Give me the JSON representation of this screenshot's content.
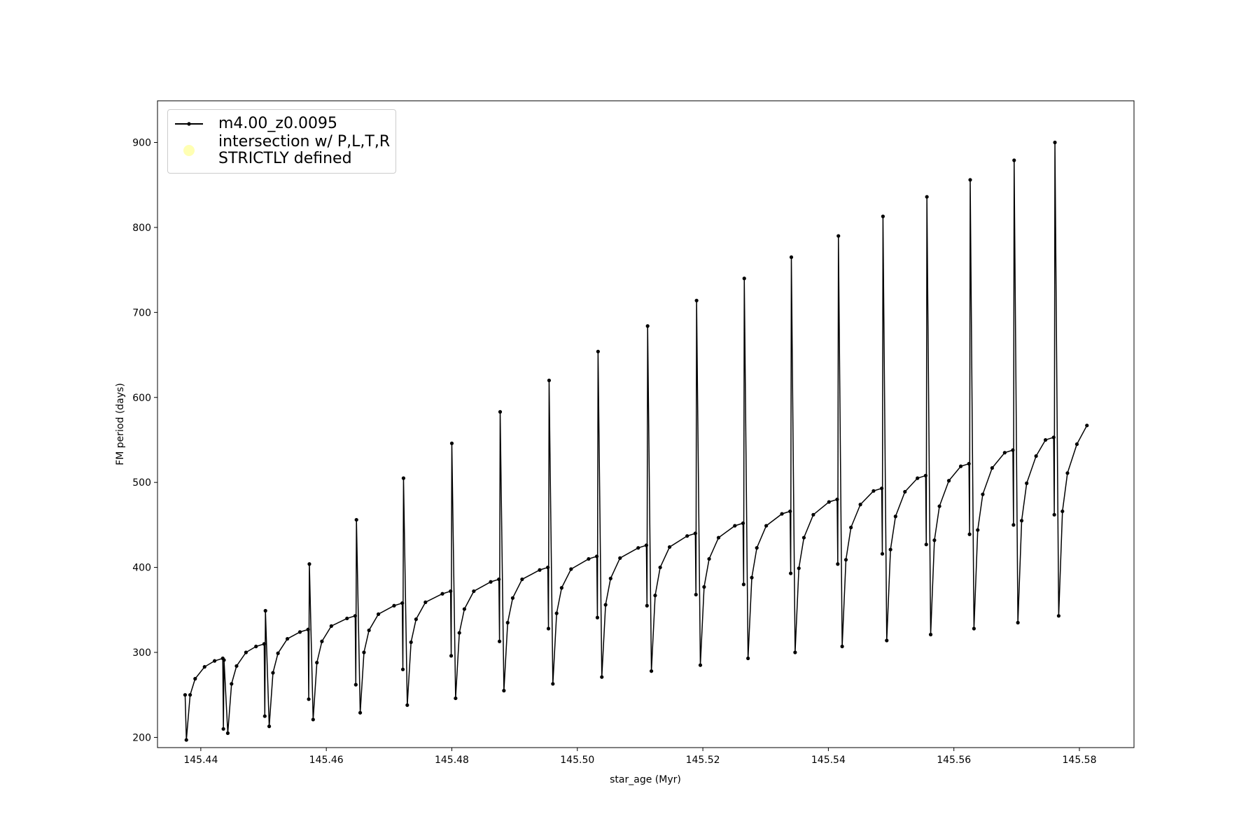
{
  "chart_data": {
    "type": "line",
    "xlabel": "star_age (Myr)",
    "ylabel": "FM period (days)",
    "xlim": [
      145.4331,
      145.5887
    ],
    "ylim": [
      188,
      949
    ],
    "xticks": [
      145.44,
      145.46,
      145.48,
      {
        "value": 145.5,
        "label": "145.50"
      },
      145.52,
      145.54,
      145.56,
      145.58
    ],
    "yticks": [
      200,
      300,
      400,
      500,
      600,
      700,
      800,
      900
    ],
    "legend": "upper left",
    "series": [
      {
        "name": "m4.00_z0.0095",
        "color": "#000000",
        "marker": "dot",
        "x": [
          145.4375,
          145.4377,
          145.4383,
          145.4391,
          145.4406,
          145.4422,
          145.4435,
          145.4436,
          145.4437,
          145.4443,
          145.4449,
          145.4457,
          145.4472,
          145.4488,
          145.4501,
          145.4502,
          145.4503,
          145.4509,
          145.4515,
          145.4523,
          145.4538,
          145.4558,
          145.4571,
          145.4572,
          145.4573,
          145.4579,
          145.4585,
          145.4593,
          145.4608,
          145.4633,
          145.4646,
          145.4647,
          145.4648,
          145.4654,
          145.466,
          145.4668,
          145.4683,
          145.4708,
          145.4721,
          145.4722,
          145.4723,
          145.4729,
          145.4735,
          145.4743,
          145.4758,
          145.4785,
          145.4798,
          145.4799,
          145.48,
          145.4806,
          145.4812,
          145.482,
          145.4835,
          145.4862,
          145.4875,
          145.4876,
          145.4877,
          145.4883,
          145.4889,
          145.4897,
          145.4912,
          145.494,
          145.4953,
          145.4954,
          145.4955,
          145.4961,
          145.4967,
          145.4975,
          145.499,
          145.5018,
          145.5031,
          145.5032,
          145.5033,
          145.5039,
          145.5045,
          145.5053,
          145.5068,
          145.5097,
          145.511,
          145.5111,
          145.5112,
          145.5118,
          145.5124,
          145.5132,
          145.5147,
          145.5175,
          145.5188,
          145.5189,
          145.519,
          145.5196,
          145.5202,
          145.521,
          145.5225,
          145.5251,
          145.5264,
          145.5265,
          145.5266,
          145.5272,
          145.5278,
          145.5286,
          145.5301,
          145.5326,
          145.5339,
          145.534,
          145.5341,
          145.5347,
          145.5353,
          145.5361,
          145.5376,
          145.5401,
          145.5414,
          145.5415,
          145.5416,
          145.5422,
          145.5428,
          145.5436,
          145.5451,
          145.5472,
          145.5485,
          145.5486,
          145.5487,
          145.5493,
          145.5499,
          145.5507,
          145.5522,
          145.5542,
          145.5555,
          145.5556,
          145.5557,
          145.5563,
          145.5569,
          145.5577,
          145.5592,
          145.5611,
          145.5624,
          145.5625,
          145.5626,
          145.5632,
          145.5638,
          145.5646,
          145.5661,
          145.5681,
          145.5694,
          145.5695,
          145.5696,
          145.5702,
          145.5708,
          145.5716,
          145.5731,
          145.5746,
          145.5759,
          145.576,
          145.5761,
          145.5767,
          145.5773,
          145.5781,
          145.5796,
          145.5812
        ],
        "values": [
          250,
          197,
          250,
          269,
          283,
          290,
          293,
          210,
          291,
          205,
          263,
          284,
          300,
          307,
          310,
          225,
          349,
          213,
          276,
          299,
          316,
          324,
          327,
          245,
          404,
          221,
          288,
          313,
          331,
          340,
          343,
          262,
          456,
          229,
          300,
          326,
          345,
          355,
          358,
          280,
          505,
          238,
          312,
          339,
          359,
          369,
          372,
          296,
          546,
          246,
          323,
          351,
          372,
          383,
          386,
          313,
          583,
          255,
          335,
          364,
          386,
          397,
          400,
          328,
          620,
          263,
          346,
          376,
          398,
          410,
          413,
          341,
          654,
          271,
          356,
          387,
          411,
          423,
          426,
          355,
          684,
          278,
          367,
          400,
          424,
          437,
          440,
          368,
          714,
          285,
          377,
          410,
          435,
          449,
          452,
          380,
          740,
          293,
          388,
          423,
          449,
          463,
          466,
          393,
          765,
          300,
          399,
          435,
          462,
          477,
          480,
          404,
          790,
          307,
          409,
          447,
          474,
          490,
          493,
          416,
          813,
          314,
          421,
          460,
          489,
          505,
          508,
          427,
          836,
          321,
          432,
          472,
          502,
          519,
          522,
          439,
          856,
          328,
          444,
          486,
          517,
          535,
          538,
          450,
          879,
          335,
          455,
          499,
          531,
          550,
          553,
          462,
          900,
          343,
          466,
          511,
          545,
          567
        ]
      },
      {
        "name": "intersection w/ P,L,T,R\nSTRICTLY defined",
        "type": "scatter",
        "color": "#ffffb3",
        "x": [],
        "values": []
      }
    ]
  }
}
